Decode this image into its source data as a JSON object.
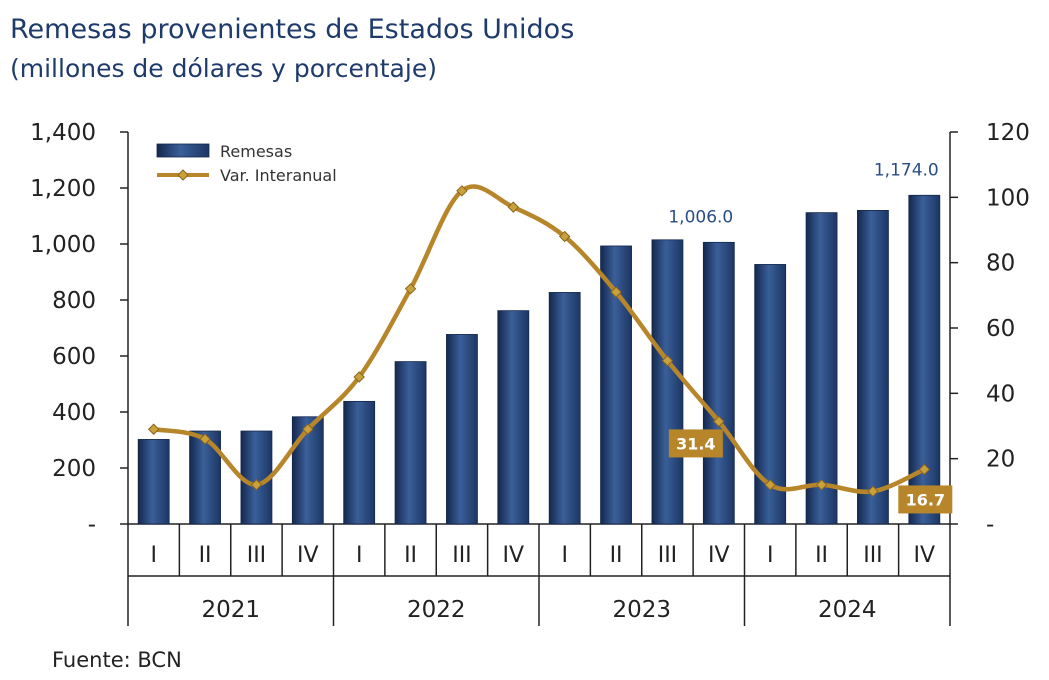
{
  "header": {
    "title": "Remesas provenientes de Estados Unidos",
    "subtitle": "(millones de dólares y porcentaje)"
  },
  "footer": {
    "source": "Fuente: BCN"
  },
  "colors": {
    "bar": "#26497f",
    "bar_dark": "#14284d",
    "bar_light": "#5677ab",
    "line": "#b8862a",
    "marker": "#c9a13b",
    "axis": "#222222",
    "label_box": "#b8862a",
    "bar_label": "#2a4d86"
  },
  "chart_data": {
    "type": "bar",
    "quarters": [
      "I",
      "II",
      "III",
      "IV",
      "I",
      "II",
      "III",
      "IV",
      "I",
      "II",
      "III",
      "IV",
      "I",
      "II",
      "III",
      "IV"
    ],
    "years": [
      "2021",
      "2022",
      "2023",
      "2024"
    ],
    "series": [
      {
        "name": "Remesas",
        "type": "bar",
        "axis": "left",
        "values": [
          302,
          332,
          332,
          383,
          438,
          580,
          677,
          762,
          827,
          993,
          1015,
          1006.0,
          927,
          1112,
          1120,
          1174.0
        ]
      },
      {
        "name": "Var. Interanual",
        "type": "line",
        "axis": "right",
        "values": [
          29,
          26,
          12,
          29,
          45,
          72,
          102,
          97,
          88,
          71,
          50,
          31.4,
          12,
          12,
          10,
          16.7
        ]
      }
    ],
    "left_axis": {
      "ylim": [
        0,
        1400
      ],
      "ticks": [
        "-",
        "200",
        "400",
        "600",
        "800",
        "1,000",
        "1,200",
        "1,400"
      ]
    },
    "right_axis": {
      "ylim": [
        0,
        120
      ],
      "ticks": [
        "-",
        "20",
        "40",
        "60",
        "80",
        "100",
        "120"
      ]
    },
    "bar_labels": [
      {
        "index": 11,
        "text": "1,006.0"
      },
      {
        "index": 15,
        "text": "1,174.0"
      }
    ],
    "line_labels": [
      {
        "index": 11,
        "text": "31.4"
      },
      {
        "index": 15,
        "text": "16.7"
      }
    ],
    "legend": {
      "position": "top-left"
    },
    "grid": false
  }
}
